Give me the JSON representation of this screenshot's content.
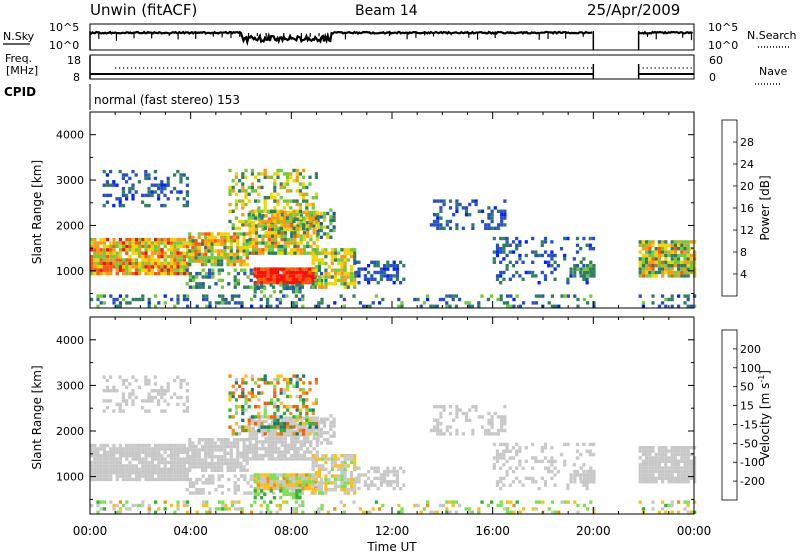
{
  "header": {
    "site": "Unwin (fitACF)",
    "beam": "Beam 14",
    "date": "25/Apr/2009"
  },
  "noise_panel": {
    "left_label": "N.Sky",
    "right_label": "N.Search",
    "tick_top": "10^5",
    "tick_bottom": "10^0"
  },
  "freq_panel": {
    "left_label_line1": "Freq.",
    "left_label_line2": "[MHz]",
    "left_tick_top": "18",
    "left_tick_bottom": "8",
    "right_label": "Nave",
    "right_tick_top": "60",
    "right_tick_bottom": "0"
  },
  "cpid_panel": {
    "label": "CPID",
    "mode": "normal (fast stereo) 153"
  },
  "chart_data": [
    {
      "type": "heatmap",
      "name": "power",
      "ylabel": "Slant Range [km]",
      "ylim": [
        180,
        4500
      ],
      "yticks": [
        {
          "v": 1000,
          "label": "1000"
        },
        {
          "v": 2000,
          "label": "2000"
        },
        {
          "v": 3000,
          "label": "3000"
        },
        {
          "v": 4000,
          "label": "4000"
        }
      ],
      "colorbar": {
        "label": "Power [dB]",
        "ticks": [
          "4",
          "8",
          "12",
          "16",
          "20",
          "24",
          "28"
        ],
        "colors": [
          "#0022ff",
          "#2a4fc0",
          "#2f7f5f",
          "#74c83c",
          "#f1d400",
          "#f89a18",
          "#f45a10",
          "#ff1000"
        ]
      }
    },
    {
      "type": "heatmap",
      "name": "velocity",
      "ylabel": "Slant Range [km]",
      "ylim": [
        180,
        4500
      ],
      "yticks": [
        {
          "v": 1000,
          "label": "1000"
        },
        {
          "v": 2000,
          "label": "2000"
        },
        {
          "v": 3000,
          "label": "3000"
        },
        {
          "v": 4000,
          "label": "4000"
        }
      ],
      "colorbar": {
        "label": "Velocity [m s",
        "label_sup": "-1",
        "label_end": "]",
        "ticks": [
          "200",
          "100",
          "50",
          "15",
          "-15",
          "-50",
          "-100",
          "-200"
        ],
        "colors": [
          "#1f3cc8",
          "#1e7a6a",
          "#36b034",
          "#7ee052",
          "#c8c8c8",
          "#f8c020",
          "#f09018",
          "#f06010",
          "#ff1000"
        ]
      }
    }
  ],
  "x_axis": {
    "label": "Time UT",
    "ticks": [
      {
        "h": 0,
        "label": "00:00"
      },
      {
        "h": 4,
        "label": "04:00"
      },
      {
        "h": 8,
        "label": "08:00"
      },
      {
        "h": 12,
        "label": "12:00"
      },
      {
        "h": 16,
        "label": "16:00"
      },
      {
        "h": 20,
        "label": "20:00"
      },
      {
        "h": 24,
        "label": "00:00"
      }
    ],
    "data_gap_hours": [
      20.0,
      21.8
    ]
  },
  "scatter_regions": [
    {
      "h": [
        0.0,
        3.9
      ],
      "r": [
        900,
        1700
      ],
      "d": 0.9,
      "p": [
        12,
        30
      ],
      "v": [
        -15,
        15
      ]
    },
    {
      "h": [
        3.9,
        6.3
      ],
      "r": [
        1100,
        1800
      ],
      "d": 0.85,
      "p": [
        10,
        26
      ],
      "v": [
        -15,
        15
      ]
    },
    {
      "h": [
        6.3,
        9.0
      ],
      "r": [
        1350,
        2250
      ],
      "d": 0.8,
      "p": [
        8,
        26
      ],
      "v": [
        -15,
        15
      ]
    },
    {
      "h": [
        9.0,
        9.7
      ],
      "r": [
        1700,
        2300
      ],
      "d": 0.5,
      "p": [
        6,
        18
      ],
      "v": [
        -15,
        15
      ]
    },
    {
      "h": [
        3.8,
        9.2
      ],
      "r": [
        600,
        1000
      ],
      "d": 0.4,
      "p": [
        4,
        16
      ],
      "v": [
        -15,
        15
      ]
    },
    {
      "h": [
        6.5,
        9.0
      ],
      "r": [
        700,
        1050
      ],
      "d": 0.95,
      "p": [
        26,
        31
      ],
      "v": [
        -70,
        40
      ]
    },
    {
      "h": [
        8.8,
        10.5
      ],
      "r": [
        600,
        1450
      ],
      "d": 0.7,
      "p": [
        10,
        22
      ],
      "v": [
        -40,
        25
      ]
    },
    {
      "h": [
        6.5,
        8.3
      ],
      "r": [
        500,
        700
      ],
      "d": 0.6,
      "p": [
        6,
        14
      ],
      "v": [
        15,
        80
      ]
    },
    {
      "h": [
        10.5,
        12.5
      ],
      "r": [
        700,
        1200
      ],
      "d": 0.5,
      "p": [
        3,
        10
      ],
      "v": [
        -15,
        15
      ]
    },
    {
      "h": [
        0.5,
        3.9
      ],
      "r": [
        2400,
        3200
      ],
      "d": 0.35,
      "p": [
        3,
        12
      ],
      "v": [
        -15,
        15
      ]
    },
    {
      "h": [
        5.5,
        9.0
      ],
      "r": [
        1900,
        3200
      ],
      "d": 0.4,
      "p": [
        8,
        24
      ],
      "v": [
        -160,
        160
      ]
    },
    {
      "h": [
        13.5,
        16.5
      ],
      "r": [
        1900,
        2500
      ],
      "d": 0.35,
      "p": [
        3,
        10
      ],
      "v": [
        -15,
        15
      ]
    },
    {
      "h": [
        16.0,
        20.0
      ],
      "r": [
        700,
        1700
      ],
      "d": 0.25,
      "p": [
        3,
        10
      ],
      "v": [
        -15,
        15
      ]
    },
    {
      "h": [
        19.2,
        20.0
      ],
      "r": [
        850,
        1200
      ],
      "d": 0.6,
      "p": [
        8,
        16
      ],
      "v": [
        -15,
        15
      ]
    },
    {
      "h": [
        21.8,
        24.0
      ],
      "r": [
        850,
        1650
      ],
      "d": 0.85,
      "p": [
        8,
        26
      ],
      "v": [
        -15,
        15
      ]
    },
    {
      "h": [
        0.0,
        20.0
      ],
      "r": [
        180,
        450
      ],
      "d": 0.3,
      "p": [
        3,
        14
      ],
      "v": [
        -60,
        60
      ]
    },
    {
      "h": [
        21.8,
        24.0
      ],
      "r": [
        180,
        450
      ],
      "d": 0.3,
      "p": [
        3,
        14
      ],
      "v": [
        -60,
        60
      ]
    }
  ]
}
